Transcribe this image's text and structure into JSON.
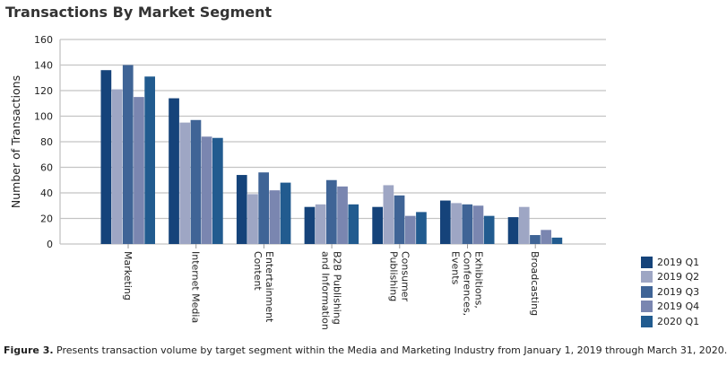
{
  "chart_data": {
    "type": "bar",
    "title": "Transactions By Market Segment",
    "xlabel": "",
    "ylabel": "Number of Transactions",
    "ylim": [
      0,
      160
    ],
    "yticks": [
      0,
      20,
      40,
      60,
      80,
      100,
      120,
      140,
      160
    ],
    "grid": true,
    "legend_position": "bottom-right",
    "categories": [
      "Marketing",
      "Internet Media",
      "Entertainment Content",
      "B2B Publishing and Information",
      "Consumer Publishing",
      "Exhibitions, Conferences, Events",
      "Broadcasting"
    ],
    "category_lines": [
      [
        "Marketing"
      ],
      [
        "Internet Media"
      ],
      [
        "Entertainment",
        "Content"
      ],
      [
        "B2B Publishing",
        "and Information"
      ],
      [
        "Consumer",
        "Publishing"
      ],
      [
        "Exhibitions,",
        "Conferences,",
        "Events"
      ],
      [
        "Broadcasting"
      ]
    ],
    "series": [
      {
        "name": "2019 Q1",
        "color": "#15437a",
        "values": [
          136,
          114,
          54,
          29,
          29,
          34,
          21
        ]
      },
      {
        "name": "2019 Q2",
        "color": "#9ea6c4",
        "values": [
          121,
          95,
          39,
          31,
          46,
          32,
          29
        ]
      },
      {
        "name": "2019 Q3",
        "color": "#3f6496",
        "values": [
          140,
          97,
          56,
          50,
          38,
          31,
          7
        ]
      },
      {
        "name": "2019 Q4",
        "color": "#7a86b0",
        "values": [
          115,
          84,
          42,
          45,
          22,
          30,
          11
        ]
      },
      {
        "name": "2020 Q1",
        "color": "#215b8f",
        "values": [
          131,
          83,
          48,
          31,
          25,
          22,
          5
        ]
      }
    ]
  },
  "caption": {
    "label": "Figure 3.",
    "text": " Presents transaction volume by target segment within the Media and Marketing Industry from January 1, 2019 through March 31, 2020."
  }
}
